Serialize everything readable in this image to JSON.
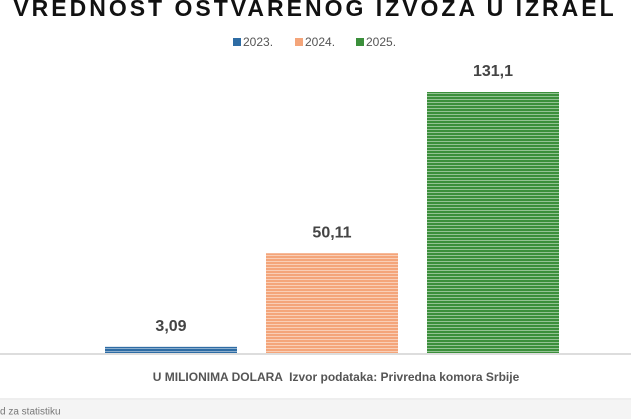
{
  "chart_data": {
    "type": "bar",
    "title": "VREDNOST OSTVARENOG IZVOZA U IZRAEL",
    "series": [
      {
        "name": "2023.",
        "color": "#2e6ca4",
        "values": [
          3.09
        ],
        "value_labels": [
          "3,09"
        ]
      },
      {
        "name": "2024.",
        "color": "#f4a57a",
        "values": [
          50.11
        ],
        "value_labels": [
          "50,11"
        ]
      },
      {
        "name": "2025.",
        "color": "#3b8f3b",
        "values": [
          131.1
        ],
        "value_labels": [
          "131,1"
        ]
      }
    ],
    "footer": "U MILIONIMA DOLARA  Izvor podataka: Privredna komora Srbije",
    "note": "d za statistiku"
  }
}
